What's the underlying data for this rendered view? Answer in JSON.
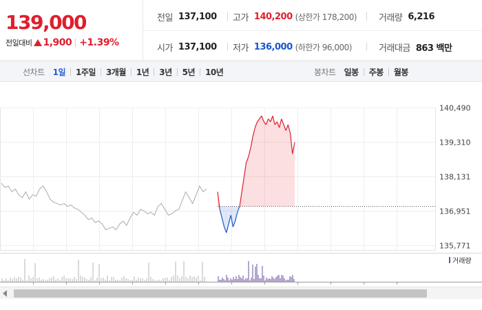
{
  "summary": {
    "current_price": "139,000",
    "change_label": "전일대비",
    "change_amount": "1,900",
    "change_percent": "+1.39%",
    "prev_close": {
      "label": "전일",
      "value": "137,100"
    },
    "open": {
      "label": "시가",
      "value": "137,100"
    },
    "high": {
      "label": "고가",
      "value": "140,200",
      "note": "(상한가 178,200)"
    },
    "low": {
      "label": "저가",
      "value": "136,000",
      "note": "(하한가 96,000)"
    },
    "volume": {
      "label": "거래량",
      "value": "6,216"
    },
    "trade_value": {
      "label": "거래대금",
      "value": "863 백만"
    }
  },
  "toolbar": {
    "line_label": "선차트",
    "line_periods": [
      "1일",
      "1주일",
      "3개월",
      "1년",
      "3년",
      "5년",
      "10년"
    ],
    "active_period": "1일",
    "candle_label": "봉차트",
    "candle_periods": [
      "일봉",
      "주봉",
      "월봉"
    ]
  },
  "colors": {
    "up": "#e01e2d",
    "down": "#1a56c7",
    "prior_day": "#aaaaaa",
    "volume_today": "#6a4fa0",
    "volume_prior": "#b5b5b5"
  },
  "chart_data": {
    "type": "line",
    "y_ticks": [
      "140,490",
      "139,310",
      "138,131",
      "136,951",
      "135,771"
    ],
    "ylim": [
      135771,
      140490
    ],
    "baseline": 137100,
    "volume_legend": "거래량",
    "prior_day_series": [
      137900,
      137750,
      137800,
      137600,
      137700,
      137500,
      137400,
      137600,
      137350,
      137500,
      137450,
      137700,
      137800,
      137600,
      137350,
      137250,
      137200,
      137150,
      137200,
      137100,
      137150,
      137050,
      137000,
      136900,
      136800,
      136650,
      136700,
      136550,
      136600,
      136500,
      136300,
      136350,
      136400,
      136300,
      136500,
      136600,
      136450,
      136700,
      136900,
      136800,
      137000,
      136950,
      136850,
      136900,
      136800,
      137100,
      137200,
      137000,
      136800,
      136850,
      136950,
      137000,
      137300,
      137600,
      137400,
      137200,
      137500,
      137800,
      137600,
      137700
    ],
    "today_series": [
      137600,
      137000,
      136700,
      136400,
      136200,
      136500,
      136800,
      136400,
      136600,
      136900,
      137100,
      137600,
      138100,
      138600,
      138800,
      139100,
      139500,
      139800,
      140000,
      140100,
      140200,
      140000,
      139900,
      140100,
      140000,
      140200,
      139900,
      140000,
      139800,
      140100,
      139900,
      139700,
      139900,
      139600,
      138900,
      139300
    ]
  }
}
